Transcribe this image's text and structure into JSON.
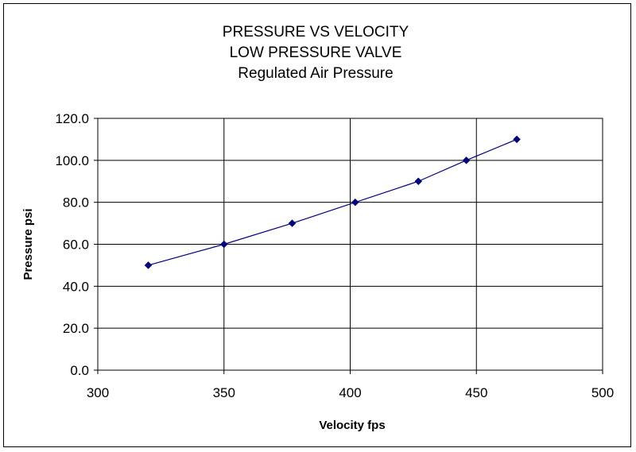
{
  "chart_data": {
    "type": "line",
    "title_lines": [
      "PRESSURE VS VELOCITY",
      "LOW PRESSURE VALVE",
      "Regulated Air Pressure"
    ],
    "xlabel": "Velocity fps",
    "ylabel": "Pressure psi",
    "xlim": [
      300,
      500
    ],
    "ylim": [
      0,
      120
    ],
    "x_ticks": [
      300,
      350,
      400,
      450,
      500
    ],
    "y_ticks": [
      0,
      20,
      40,
      60,
      80,
      100,
      120
    ],
    "y_tick_labels": [
      "0.0",
      "20.0",
      "40.0",
      "60.0",
      "80.0",
      "100.0",
      "120.0"
    ],
    "grid": true,
    "legend": "none",
    "series": [
      {
        "x": [
          320,
          350,
          377,
          402,
          427,
          446,
          466
        ],
        "y": [
          50,
          60,
          70,
          80,
          90,
          100,
          110
        ],
        "color": "#000080",
        "marker": "diamond"
      }
    ]
  }
}
